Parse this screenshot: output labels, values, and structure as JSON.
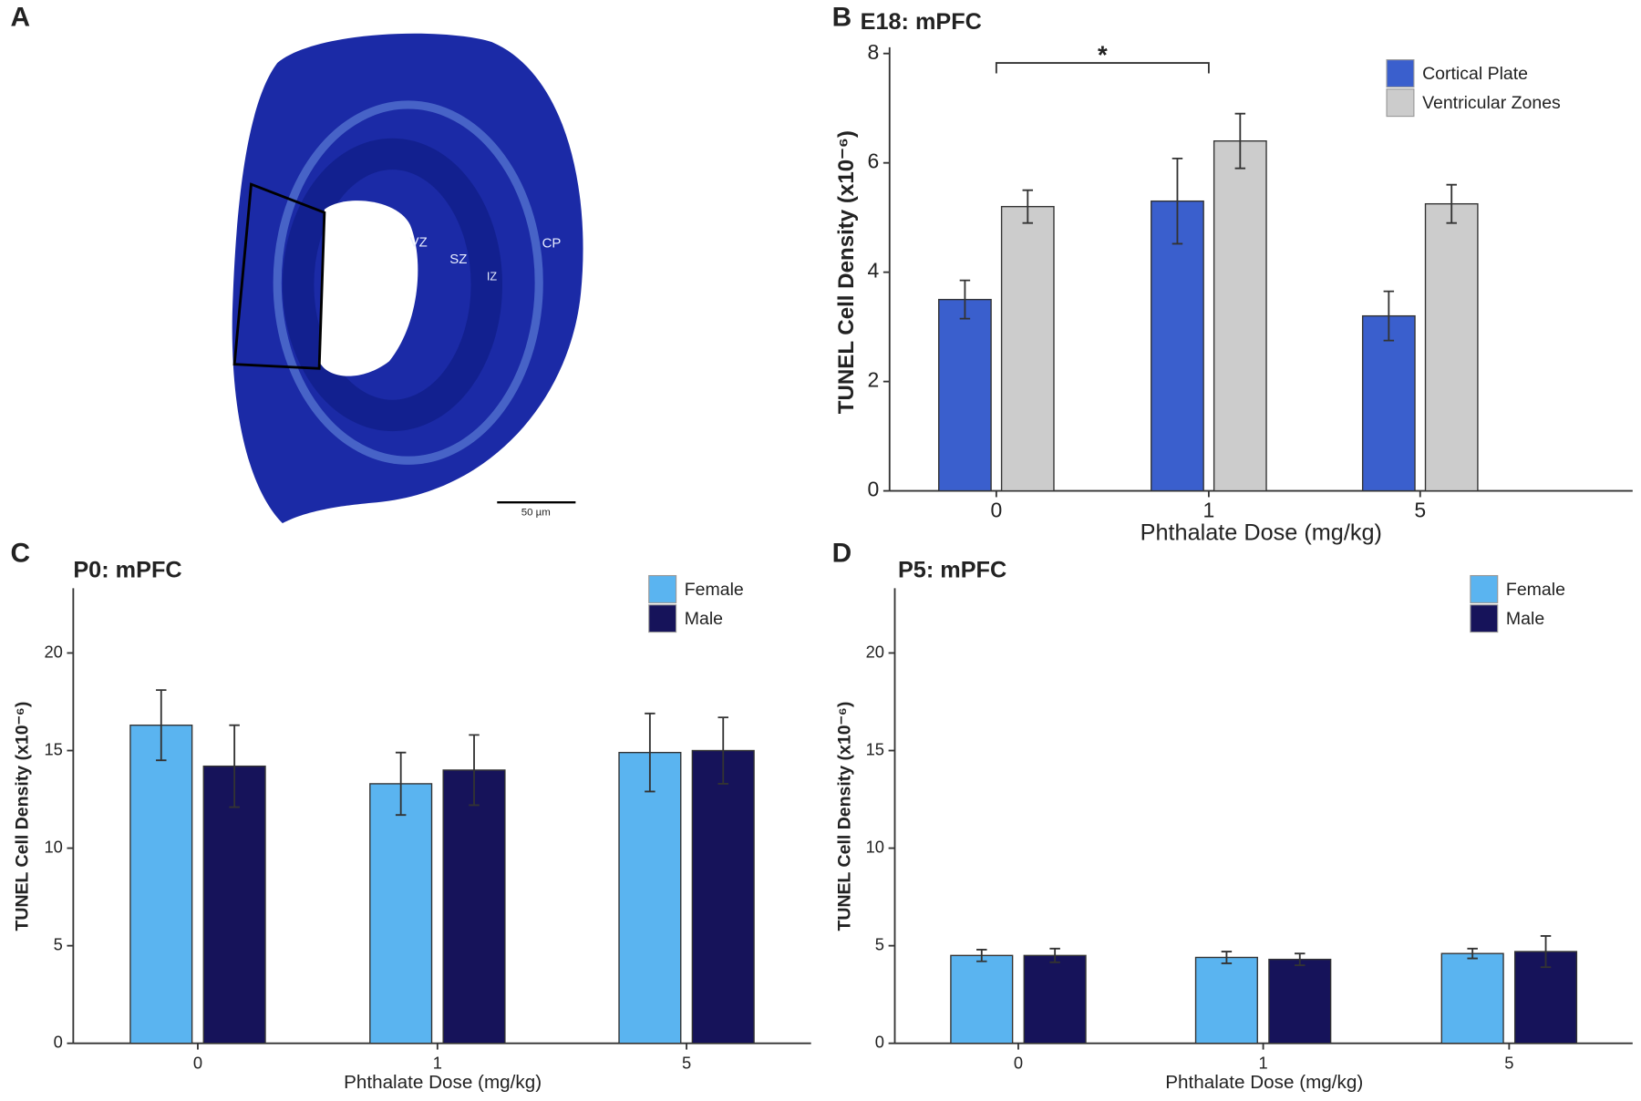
{
  "panel_a": {
    "label": "A",
    "regions": [
      "VZ",
      "SZ",
      "IZ",
      "CP"
    ],
    "scale_bar": "50 µm"
  },
  "chart_data": [
    {
      "type": "bar",
      "panel": "B",
      "title": "E18: mPFC",
      "x_label": "Phthalate Dose (mg/kg)",
      "y_label": "TUNEL Cell Density (x10⁻⁶)",
      "categories": [
        "0",
        "1",
        "5"
      ],
      "series": [
        {
          "name": "Cortical Plate",
          "color": "#3a5fcd",
          "values": [
            3.5,
            5.3,
            3.2
          ],
          "errors": [
            0.35,
            0.78,
            0.45
          ]
        },
        {
          "name": "Ventricular Zones",
          "color": "#cccccc",
          "values": [
            5.2,
            6.4,
            5.25
          ],
          "errors": [
            0.3,
            0.5,
            0.35
          ]
        }
      ],
      "ylim": [
        0,
        8
      ],
      "yticks": [
        0,
        2,
        4,
        6,
        8
      ],
      "annotation": "*"
    },
    {
      "type": "bar",
      "panel": "C",
      "title": "P0: mPFC",
      "x_label": "Phthalate Dose (mg/kg)",
      "y_label": "TUNEL Cell Density (x10⁻⁶)",
      "categories": [
        "0",
        "1",
        "5"
      ],
      "series": [
        {
          "name": "Female",
          "color": "#5ab4f0",
          "values": [
            16.3,
            13.3,
            14.9
          ],
          "errors": [
            1.8,
            1.6,
            2.0
          ]
        },
        {
          "name": "Male",
          "color": "#16135a",
          "values": [
            14.2,
            14.0,
            15.0
          ],
          "errors": [
            2.1,
            1.8,
            1.7
          ]
        }
      ],
      "ylim": [
        0,
        23
      ],
      "yticks": [
        0,
        5,
        10,
        15,
        20
      ]
    },
    {
      "type": "bar",
      "panel": "D",
      "title": "P5: mPFC",
      "x_label": "Phthalate Dose (mg/kg)",
      "y_label": "TUNEL Cell Density (x10⁻⁶)",
      "categories": [
        "0",
        "1",
        "5"
      ],
      "series": [
        {
          "name": "Female",
          "color": "#5ab4f0",
          "values": [
            4.5,
            4.4,
            4.6
          ],
          "errors": [
            0.3,
            0.3,
            0.25
          ]
        },
        {
          "name": "Male",
          "color": "#16135a",
          "values": [
            4.5,
            4.3,
            4.7
          ],
          "errors": [
            0.35,
            0.3,
            0.8
          ]
        }
      ],
      "ylim": [
        0,
        23
      ],
      "yticks": [
        0,
        5,
        10,
        15,
        20
      ]
    }
  ]
}
